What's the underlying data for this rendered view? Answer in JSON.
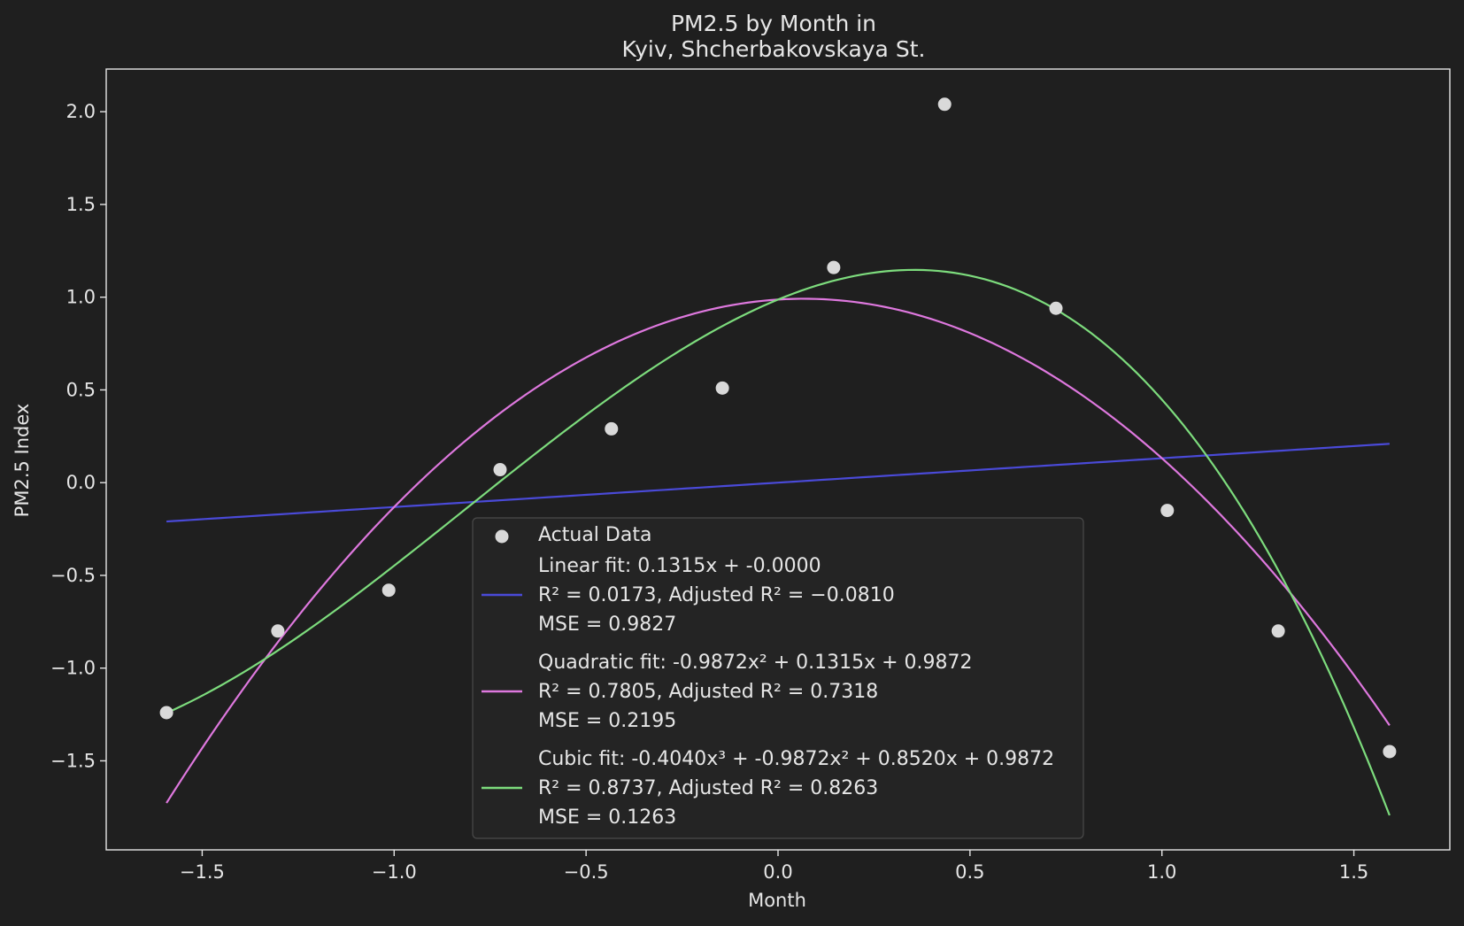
{
  "chart_data": {
    "type": "scatter",
    "title": "PM2.5 by Month in",
    "subtitle": "Kyiv, Shcherbakovskaya St.",
    "xlabel": "Month",
    "ylabel": "PM2.5 Index",
    "xlim": [
      -1.75,
      1.75
    ],
    "ylim": [
      -1.98,
      2.23
    ],
    "xticks": [
      -1.5,
      -1.0,
      -0.5,
      0.0,
      0.5,
      1.0,
      1.5
    ],
    "xtick_labels": [
      "−1.5",
      "−1.0",
      "−0.5",
      "0.0",
      "0.5",
      "1.0",
      "1.5"
    ],
    "yticks": [
      -1.5,
      -1.0,
      -0.5,
      0.0,
      0.5,
      1.0,
      1.5,
      2.0
    ],
    "ytick_labels": [
      "−1.5",
      "−1.0",
      "−0.5",
      "0.0",
      "0.5",
      "1.0",
      "1.5",
      "2.0"
    ],
    "grid": true,
    "legend_position": "lower-center",
    "series": [
      {
        "name": "Actual Data",
        "kind": "scatter",
        "color": "#d9d9d9",
        "x": [
          -1.593,
          -1.303,
          -1.014,
          -0.724,
          -0.434,
          -0.145,
          0.145,
          0.434,
          0.724,
          1.014,
          1.303,
          1.593
        ],
        "y": [
          -1.24,
          -0.8,
          -0.58,
          0.07,
          0.29,
          0.51,
          1.16,
          2.04,
          0.94,
          -0.15,
          -0.8,
          -1.45
        ]
      },
      {
        "name": "Linear fit: 0.1315x + -0.0000",
        "kind": "line",
        "color": "#4a4ad8",
        "coefficients": [
          0.1315,
          -0.0
        ],
        "x_range": [
          -1.593,
          1.593
        ],
        "legend_lines": [
          "Linear fit: 0.1315x + -0.0000",
          "R² = 0.0173, Adjusted R² = −0.0810",
          "MSE = 0.9827"
        ]
      },
      {
        "name": "Quadratic fit: -0.9872x² + 0.1315x + 0.9872",
        "kind": "line",
        "color": "#de78de",
        "coefficients": [
          -0.9872,
          0.1315,
          0.9872
        ],
        "x_range": [
          -1.593,
          1.593
        ],
        "legend_lines": [
          "Quadratic fit: -0.9872x² + 0.1315x + 0.9872",
          "R² = 0.7805, Adjusted R² = 0.7318",
          "MSE = 0.2195"
        ]
      },
      {
        "name": "Cubic fit: -0.4040x³ + -0.9872x² + 0.8520x + 0.9872",
        "kind": "line",
        "color": "#7ddc7d",
        "coefficients": [
          -0.404,
          -0.9872,
          0.852,
          0.9872
        ],
        "x_range": [
          -1.593,
          1.593
        ],
        "legend_lines": [
          "Cubic fit: -0.4040x³ + -0.9872x² + 0.8520x + 0.9872",
          "R² = 0.8737, Adjusted R² = 0.8263",
          "MSE = 0.1263"
        ]
      }
    ]
  }
}
